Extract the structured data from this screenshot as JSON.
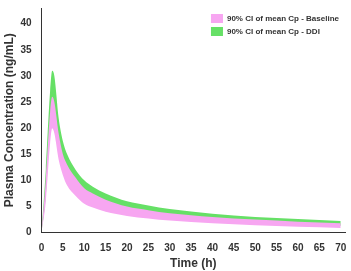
{
  "chart_data": {
    "type": "area",
    "x_label": "Time (h)",
    "y_label": "Plasma Concentration (ng/mL)",
    "x": [
      0,
      1,
      2,
      2.5,
      3,
      4,
      5,
      6,
      8,
      10,
      12,
      15,
      20,
      25,
      30,
      40,
      50,
      60,
      70
    ],
    "series": [
      {
        "name": "90% CI of mean Cp - Baseline",
        "color": "#f7a6f1",
        "lower": [
          0,
          6,
          17,
          20,
          19,
          14,
          11,
          9,
          7,
          5.5,
          4.8,
          4,
          3.2,
          2.7,
          2.3,
          1.8,
          1.4,
          1.1,
          0.9
        ],
        "upper": [
          0,
          10,
          23,
          26,
          25,
          19,
          15,
          13,
          10.5,
          8.5,
          7.5,
          6.3,
          5,
          4.3,
          3.7,
          3,
          2.5,
          2.1,
          1.8
        ]
      },
      {
        "name": "90% CI of mean Cp - DDI",
        "color": "#66e066",
        "lower": [
          0,
          7,
          20,
          24,
          23,
          17,
          13.5,
          11,
          8.5,
          7,
          6,
          5,
          4,
          3.4,
          3,
          2.3,
          1.9,
          1.6,
          1.3
        ],
        "upper": [
          0,
          12,
          27,
          31,
          30,
          22,
          17.5,
          15,
          12,
          10,
          8.8,
          7.5,
          6,
          5.2,
          4.5,
          3.6,
          3,
          2.6,
          2.2
        ]
      }
    ],
    "xlim": [
      0,
      71
    ],
    "xticks": [
      0,
      5,
      10,
      15,
      20,
      25,
      30,
      35,
      40,
      45,
      50,
      55,
      60,
      65,
      70
    ],
    "ylim": [
      0,
      43
    ],
    "yticks": [
      0,
      5,
      10,
      15,
      20,
      25,
      30,
      35,
      40
    ],
    "grid": false,
    "legend": "upper right"
  }
}
